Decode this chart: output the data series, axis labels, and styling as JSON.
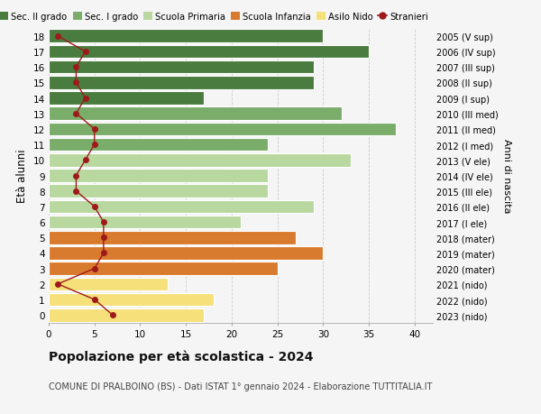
{
  "ages": [
    18,
    17,
    16,
    15,
    14,
    13,
    12,
    11,
    10,
    9,
    8,
    7,
    6,
    5,
    4,
    3,
    2,
    1,
    0
  ],
  "bar_values": [
    30,
    35,
    29,
    29,
    17,
    32,
    38,
    24,
    33,
    24,
    24,
    29,
    21,
    27,
    30,
    25,
    13,
    18,
    17
  ],
  "bar_colors": [
    "#4a7c3f",
    "#4a7c3f",
    "#4a7c3f",
    "#4a7c3f",
    "#4a7c3f",
    "#7aad6a",
    "#7aad6a",
    "#7aad6a",
    "#b8d8a0",
    "#b8d8a0",
    "#b8d8a0",
    "#b8d8a0",
    "#b8d8a0",
    "#d97b2e",
    "#d97b2e",
    "#d97b2e",
    "#f5e07a",
    "#f5e07a",
    "#f5e07a"
  ],
  "stranieri_values": [
    1,
    4,
    3,
    3,
    4,
    3,
    5,
    5,
    4,
    3,
    3,
    5,
    6,
    6,
    6,
    5,
    1,
    5,
    7
  ],
  "right_labels": [
    "2005 (V sup)",
    "2006 (IV sup)",
    "2007 (III sup)",
    "2008 (II sup)",
    "2009 (I sup)",
    "2010 (III med)",
    "2011 (II med)",
    "2012 (I med)",
    "2013 (V ele)",
    "2014 (IV ele)",
    "2015 (III ele)",
    "2016 (II ele)",
    "2017 (I ele)",
    "2018 (mater)",
    "2019 (mater)",
    "2020 (mater)",
    "2021 (nido)",
    "2022 (nido)",
    "2023 (nido)"
  ],
  "legend_labels": [
    "Sec. II grado",
    "Sec. I grado",
    "Scuola Primaria",
    "Scuola Infanzia",
    "Asilo Nido",
    "Stranieri"
  ],
  "legend_colors": [
    "#4a7c3f",
    "#7aad6a",
    "#b8d8a0",
    "#d97b2e",
    "#f5e07a",
    "#9e1a1a"
  ],
  "ylabel": "Età alunni",
  "right_ylabel": "Anni di nascita",
  "title": "Popolazione per età scolastica - 2024",
  "subtitle": "COMUNE DI PRALBOINO (BS) - Dati ISTAT 1° gennaio 2024 - Elaborazione TUTTITALIA.IT",
  "xlim": [
    0,
    42
  ],
  "xticks": [
    0,
    5,
    10,
    15,
    20,
    25,
    30,
    35,
    40
  ],
  "stranieri_color": "#9e1a1a",
  "bg_color": "#f5f5f5",
  "bar_height": 0.85
}
